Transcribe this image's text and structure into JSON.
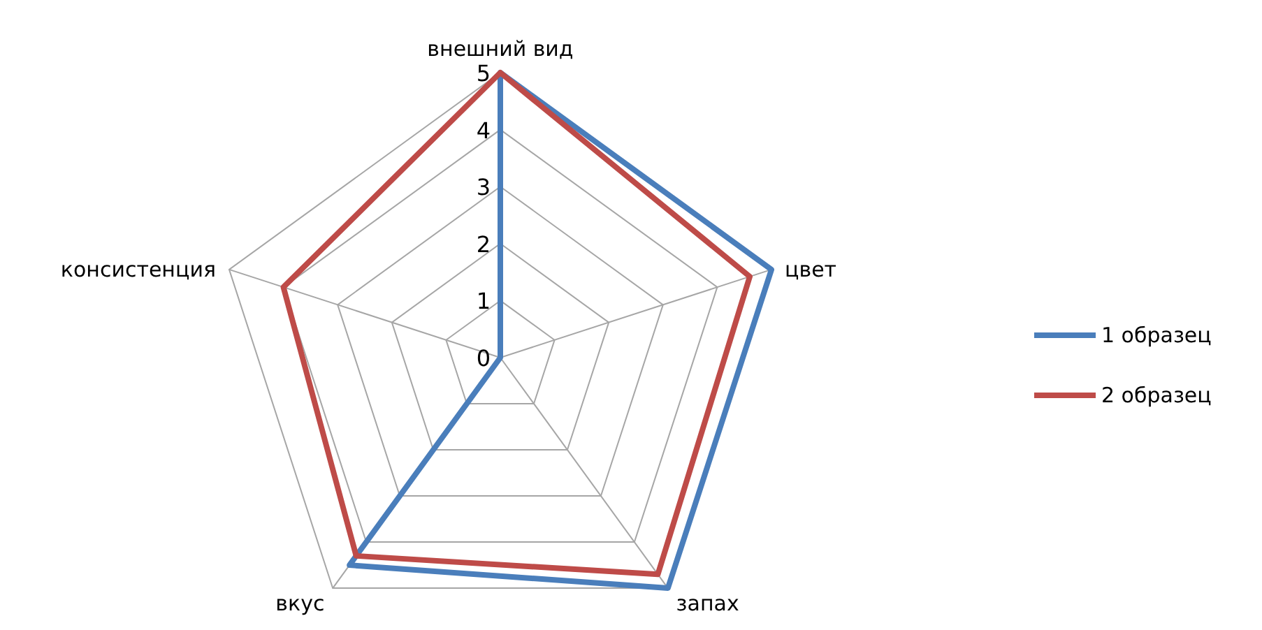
{
  "chart_data": {
    "type": "radar",
    "categories": [
      "внешний вид",
      "цвет",
      "запах",
      "вкус",
      "консистенция"
    ],
    "ylim": [
      0,
      5
    ],
    "yticks": [
      0,
      1,
      2,
      3,
      4,
      5
    ],
    "grid": true,
    "legend": "right",
    "marker": "none",
    "series": [
      {
        "name": "1 образец",
        "color": "#4a7ebb",
        "values": [
          5,
          5,
          5,
          4.5,
          0
        ]
      },
      {
        "name": "2 образец",
        "color": "#be4b48",
        "values": [
          5,
          4.6,
          4.7,
          4.3,
          4
        ]
      }
    ]
  }
}
